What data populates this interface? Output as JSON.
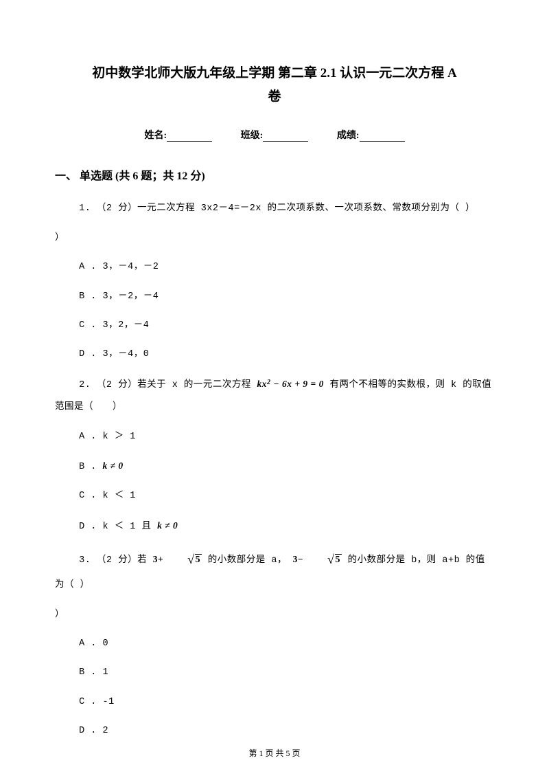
{
  "title_line1": "初中数学北师大版九年级上学期 第二章 2.1 认识一元二次方程 A",
  "title_line2": "卷",
  "info": {
    "name_label": "姓名:",
    "class_label": "班级:",
    "score_label": "成绩:"
  },
  "section": {
    "header": "一、 单选题 (共 6 题；共 12 分)"
  },
  "questions": [
    {
      "num": "1.",
      "points": "（2 分）",
      "stem_pre": "一元二次方程 3x2－4=－2x 的二次项系数、一次项系数、常数项分别为（  ）",
      "options": [
        "A . 3，－4，－2",
        "B . 3，－2，－4",
        "C . 3，2，－4",
        "D . 3，－4，0"
      ]
    },
    {
      "num": "2.",
      "points": "（2 分）",
      "stem_pre": "若关于 x 的一元二次方程 ",
      "equation": "kx² − 6x + 9 = 0",
      "stem_post": " 有两个不相等的实数根，则 k 的取值范围是（　　）",
      "options": [
        "A . k ＞ 1",
        "B . ",
        "C . k ＜ 1",
        "D . k ＜ 1 且 "
      ],
      "opt_b_math": "k ≠ 0",
      "opt_d_math": "k ≠ 0"
    },
    {
      "num": "3.",
      "points": "（2 分）",
      "stem_a": "若 ",
      "expr1_before": "3+",
      "expr1_rad": "5",
      "stem_b": " 的小数部分是 a， ",
      "expr2_before": "3−",
      "expr2_rad": "5",
      "stem_c": " 的小数部分是 b，则 a+b 的值为（  ）",
      "options": [
        "A . 0",
        "B . 1",
        "C . -1",
        "D . 2"
      ]
    }
  ],
  "footer": {
    "page_label_pre": "第 ",
    "page_current": "1",
    "page_label_mid": " 页 共 ",
    "page_total": "5",
    "page_label_post": " 页"
  },
  "colors": {
    "text": "#000000",
    "background": "#ffffff"
  },
  "fonts": {
    "body": "SimSun",
    "title_size": 19,
    "section_size": 16,
    "body_size": 13.5,
    "footer_size": 12
  }
}
